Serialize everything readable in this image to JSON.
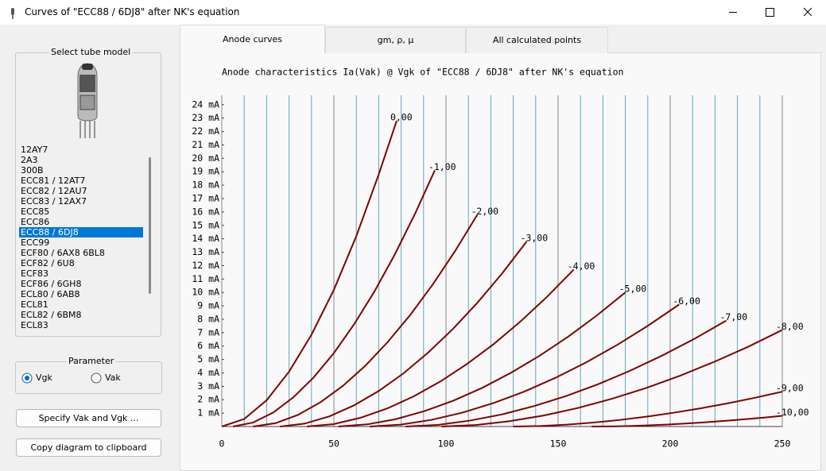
{
  "window": {
    "title": "Curves of \"ECC88 / 6DJ8\" after NK's equation"
  },
  "tube_group": {
    "title": "Select tube model",
    "list": {
      "items": [
        "12AY7",
        "2A3",
        "300B",
        "ECC81 / 12AT7",
        "ECC82 / 12AU7",
        "ECC83 / 12AX7",
        "ECC85",
        "ECC86",
        "ECC88 / 6DJ8",
        "ECC99",
        "ECF80 / 6AX8 6BL8",
        "ECF82 / 6U8",
        "ECF83",
        "ECF86 / 6GH8",
        "ECL80 / 6AB8",
        "ECL81",
        "ECL82 / 6BM8",
        "ECL83"
      ],
      "selected": 8
    }
  },
  "parameter": {
    "title": "Parameter",
    "options": [
      {
        "label": "Vgk",
        "checked": true
      },
      {
        "label": "Vak",
        "checked": false
      }
    ]
  },
  "buttons": [
    "Specify Vak and Vgk ...",
    "Copy diagram to clipboard"
  ],
  "tabs": {
    "items": [
      "Anode curves",
      "gm, ρ, μ",
      "All calculated points"
    ],
    "selected": 0
  },
  "chart_data": {
    "type": "line",
    "title": "Anode characteristics Ia(Vak) @ Vgk of \"ECC88 / 6DJ8\" after NK's equation",
    "xlim": [
      0,
      250
    ],
    "ylim": [
      0,
      24.7
    ],
    "xticks": [
      0,
      50,
      100,
      150,
      200,
      250
    ],
    "yticks": [
      {
        "value": 1,
        "label": "1 mA"
      },
      {
        "value": 2,
        "label": "2 mA"
      },
      {
        "value": 3,
        "label": "3 mA"
      },
      {
        "value": 4,
        "label": "4 mA"
      },
      {
        "value": 5,
        "label": "5 mA"
      },
      {
        "value": 6,
        "label": "6 mA"
      },
      {
        "value": 7,
        "label": "7 mA"
      },
      {
        "value": 8,
        "label": "8 mA"
      },
      {
        "value": 9,
        "label": "9 mA"
      },
      {
        "value": 10,
        "label": "10 mA"
      },
      {
        "value": 11,
        "label": "11 mA"
      },
      {
        "value": 12,
        "label": "12 mA"
      },
      {
        "value": 13,
        "label": "13 mA"
      },
      {
        "value": 14,
        "label": "14 mA"
      },
      {
        "value": 15,
        "label": "15 mA"
      },
      {
        "value": 16,
        "label": "16 mA"
      },
      {
        "value": 17,
        "label": "17 mA"
      },
      {
        "value": 18,
        "label": "18 mA"
      },
      {
        "value": 19,
        "label": "19 mA"
      },
      {
        "value": 20,
        "label": "20 mA"
      },
      {
        "value": 21,
        "label": "21 mA"
      },
      {
        "value": 22,
        "label": "22 mA"
      },
      {
        "value": 23,
        "label": "23 mA"
      },
      {
        "value": 24,
        "label": "24 mA"
      }
    ],
    "grid": true,
    "grid_color": "#5fa8b8",
    "major_grid_color": "#888888",
    "series": [
      {
        "name": "0,00",
        "color": "#800000",
        "x": [
          0,
          10,
          20,
          30,
          40,
          50,
          60,
          70,
          78
        ],
        "values": [
          0,
          0.56,
          1.96,
          4.09,
          6.85,
          10.2,
          14.2,
          18.8,
          22.8
        ]
      },
      {
        "name": "-1,00",
        "color": "#800000",
        "x": [
          5,
          14,
          23,
          32,
          41,
          50,
          59,
          68,
          77,
          86,
          95
        ],
        "values": [
          0,
          0.3,
          1.05,
          2.19,
          3.67,
          5.48,
          7.62,
          10.05,
          12.78,
          15.8,
          19.1
        ]
      },
      {
        "name": "-2,00",
        "color": "#800000",
        "x": [
          14,
          24,
          34,
          44,
          54,
          64,
          74,
          84,
          94,
          104,
          114
        ],
        "values": [
          0,
          0.25,
          0.87,
          1.81,
          3.03,
          4.53,
          6.3,
          8.31,
          10.57,
          13.07,
          15.8
        ]
      },
      {
        "name": "-3,00",
        "color": "#800000",
        "x": [
          26,
          37,
          48,
          59,
          70,
          81,
          92,
          103,
          114,
          125,
          136
        ],
        "values": [
          0,
          0.22,
          0.76,
          1.58,
          2.65,
          3.96,
          5.51,
          7.26,
          9.23,
          11.41,
          13.8
        ]
      },
      {
        "name": "-4,00",
        "color": "#800000",
        "x": [
          38,
          49.9,
          61.8,
          73.7,
          85.6,
          97.5,
          109.4,
          121.3,
          133.2,
          145.1,
          157
        ],
        "values": [
          0,
          0.18,
          0.65,
          1.34,
          2.25,
          3.36,
          4.67,
          6.15,
          7.83,
          9.68,
          11.7
        ]
      },
      {
        "name": "-5,00",
        "color": "#800000",
        "x": [
          52,
          64.8,
          77.6,
          90.4,
          103.2,
          116,
          128.8,
          141.6,
          154.4,
          167.2,
          180
        ],
        "values": [
          0,
          0.16,
          0.55,
          1.15,
          1.92,
          2.87,
          3.99,
          5.26,
          6.69,
          8.27,
          10.0
        ]
      },
      {
        "name": "-6,00",
        "color": "#800000",
        "x": [
          66,
          79.8,
          93.6,
          107.4,
          121.2,
          135,
          148.8,
          162.6,
          176.4,
          190.2,
          204
        ],
        "values": [
          0,
          0.14,
          0.5,
          1.04,
          1.75,
          2.61,
          3.63,
          4.79,
          6.09,
          7.53,
          9.1
        ]
      },
      {
        "name": "-7,00",
        "color": "#800000",
        "x": [
          82,
          96.3,
          110.6,
          124.9,
          139.2,
          153.5,
          167.8,
          182.1,
          196.4,
          210.7,
          225
        ],
        "values": [
          0,
          0.12,
          0.44,
          0.9,
          1.52,
          2.27,
          3.15,
          4.16,
          5.29,
          6.53,
          7.9
        ]
      },
      {
        "name": "-8,00",
        "color": "#800000",
        "x": [
          98,
          113.2,
          128.4,
          143.6,
          158.8,
          174,
          189.2,
          204.4,
          219.6,
          234.8,
          250
        ],
        "values": [
          0,
          0.11,
          0.4,
          0.82,
          1.38,
          2.07,
          2.87,
          3.79,
          4.82,
          5.95,
          7.2
        ]
      },
      {
        "name": "-9,00",
        "color": "#800000",
        "x": [
          130,
          142,
          154,
          166,
          178,
          190,
          202,
          214,
          226,
          238,
          250
        ],
        "values": [
          0,
          0.04,
          0.14,
          0.3,
          0.5,
          0.75,
          1.04,
          1.37,
          1.74,
          2.15,
          2.6
        ]
      },
      {
        "name": "-10,00",
        "color": "#800000",
        "x": [
          165,
          173.5,
          182,
          190.5,
          199,
          207.5,
          216,
          224.5,
          233,
          241.5,
          250
        ],
        "values": [
          0,
          0.01,
          0.04,
          0.09,
          0.15,
          0.23,
          0.32,
          0.42,
          0.54,
          0.66,
          0.8
        ]
      }
    ]
  }
}
